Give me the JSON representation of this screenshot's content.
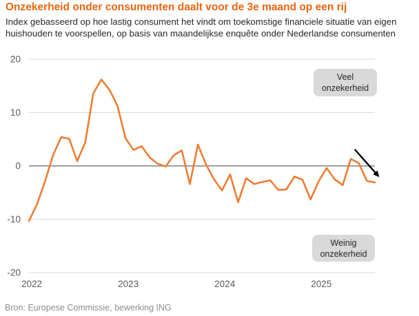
{
  "chart_data": {
    "type": "line",
    "title": "Onzekerheid onder consumenten daalt voor de 3e maand op een rij",
    "subtitle": "Index gebasseerd op hoe lastig consument het vindt om toekomstige financiele situatie van eigen huishouden te voorspellen, op basis van maandelijkse enquête onder Nederlandse consumenten",
    "frequency": "monthly",
    "x": [
      "2022-01",
      "2022-02",
      "2022-03",
      "2022-04",
      "2022-05",
      "2022-06",
      "2022-07",
      "2022-08",
      "2022-09",
      "2022-10",
      "2022-11",
      "2022-12",
      "2023-01",
      "2023-02",
      "2023-03",
      "2023-04",
      "2023-05",
      "2023-06",
      "2023-07",
      "2023-08",
      "2023-09",
      "2023-10",
      "2023-11",
      "2023-12",
      "2024-01",
      "2024-02",
      "2024-03",
      "2024-04",
      "2024-05",
      "2024-06",
      "2024-07",
      "2024-08",
      "2024-09",
      "2024-10",
      "2024-11",
      "2024-12",
      "2025-01",
      "2025-02",
      "2025-03",
      "2025-04",
      "2025-05",
      "2025-06",
      "2025-07",
      "2025-08"
    ],
    "values": [
      -10.3,
      -7.2,
      -2.9,
      2.0,
      5.4,
      5.1,
      0.9,
      4.4,
      13.6,
      16.2,
      14.3,
      11.3,
      5.2,
      3.0,
      3.7,
      1.6,
      0.4,
      -0.1,
      2.0,
      2.9,
      -3.4,
      4.0,
      0.3,
      -2.5,
      -4.6,
      -1.6,
      -6.8,
      -2.3,
      -3.4,
      -3.0,
      -2.7,
      -4.5,
      -4.4,
      -2.0,
      -2.6,
      -6.3,
      -2.9,
      -0.4,
      -2.5,
      -3.6,
      1.3,
      0.5,
      -2.8,
      -3.1
    ],
    "ylim": [
      -20,
      20
    ],
    "yticks": [
      20,
      10,
      0,
      -10,
      -20
    ],
    "xticks": [
      {
        "label": "2022",
        "month_index": 0
      },
      {
        "label": "2023",
        "month_index": 12
      },
      {
        "label": "2024",
        "month_index": 24
      },
      {
        "label": "2025",
        "month_index": 36
      }
    ],
    "grid": "horizontal-only",
    "legend": "none",
    "annotations": {
      "high_label": "Veel onzekerheid",
      "low_label": "Weinig onzekerheid",
      "arrow": {
        "x1_month_index": 40.5,
        "y1_value": 3.1,
        "x2_month_index": 43.55,
        "y2_value": -2.1,
        "color": "#000000"
      }
    }
  },
  "source": "Bron: Europese Commissie, bewerking ING",
  "colors": {
    "title": "#EA650F",
    "line": "#ED7D31",
    "grid": "#D9D9D9",
    "zero_line": "#808080",
    "axis_text": "#595959",
    "annotation_bg": "#D9D9D9",
    "body_text": "#262626",
    "source_text": "#8C8C8C"
  }
}
